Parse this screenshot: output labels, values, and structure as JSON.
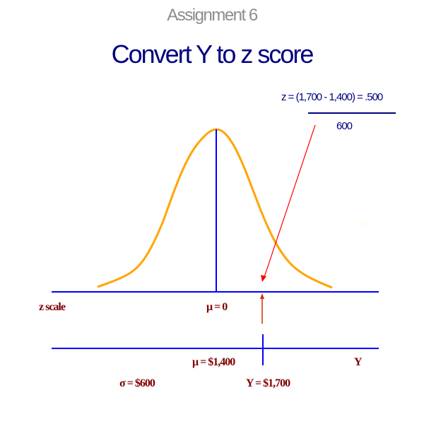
{
  "subtitle": "Assignment 6",
  "title": "Convert Y to z score",
  "formula": {
    "numerator": "z = (1,700 - 1,400) = .500",
    "denominator": "600"
  },
  "labels": {
    "z_scale": "z scale",
    "mu_z": "μ = 0",
    "mu_y": "μ = $1,400",
    "y_axis": "Y",
    "sigma": "σ = $600",
    "y_value": "Y = $1,700",
    "faint_y": "Y"
  },
  "colors": {
    "curve": "#ffa500",
    "axes": "#0000ff",
    "arrow": "#ff0000",
    "labels": "#800000",
    "formula": "#000080"
  }
}
